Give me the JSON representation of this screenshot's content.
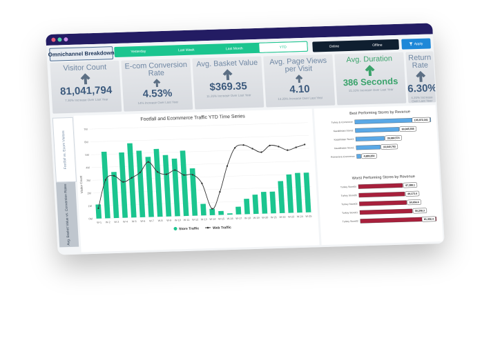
{
  "header": {
    "brand": "Omnichannel Breakdown",
    "time_tabs": [
      "Yesterday",
      "Last Week",
      "Last Month",
      "YTD"
    ],
    "active_time_tab": 3,
    "channel_tabs": [
      "Online",
      "Offline"
    ],
    "apply_label": "Apply",
    "apply_icon": "filter-icon"
  },
  "kpis": [
    {
      "title": "Visitor Count",
      "value": "81,041,794",
      "sub": "7.30% Increase Over Last Year",
      "icon": "arrow-up-icon"
    },
    {
      "title": "E-com Conversion Rate",
      "value": "4.53%",
      "sub": "14% Increase Over Last Year",
      "icon": "arrow-up-icon"
    },
    {
      "title": "Avg. Basket Value",
      "value": "$369.35",
      "sub": "11.20% Increase Over Last Year",
      "icon": "arrow-up-icon"
    },
    {
      "title": "Avg. Page Views per Visit",
      "value": "4.10",
      "sub": "14.20% Increase Over Last Year",
      "icon": "arrow-up-icon"
    },
    {
      "title": "Avg. Duration",
      "value": "386 Seconds",
      "sub": "15.10% Increase Over Last Year",
      "icon": "arrow-up-icon"
    },
    {
      "title": "Return Rate",
      "value": "6.30%",
      "sub": "4.20% Increase Over Last Year",
      "icon": "arrow-up-icon"
    }
  ],
  "side_tabs": [
    "Footfall vs. Ecom Visitors",
    "Avg. Basket Value vs. Conversion Rates"
  ],
  "colors": {
    "titlebar": "#231c63",
    "green": "#1bc58f",
    "kpi_text": "#3c5a7d",
    "kpi_green": "#3aa36b",
    "best_bar": "#5aa8e6",
    "worst_bar": "#a8203c",
    "line": "#333333"
  },
  "chart_data": [
    {
      "type": "bar",
      "title": "Footfall and Ecommerce Traffic YTD Time Series",
      "ylabel": "Visitor Count",
      "ylim": [
        0,
        7000000
      ],
      "ytick_labels": [
        "0M",
        "1M",
        "2M",
        "3M",
        "4M",
        "5M",
        "6M",
        "7M"
      ],
      "categories": [
        "W-1",
        "W-2",
        "W-3",
        "W-4",
        "W-5",
        "W-6",
        "W-7",
        "W-8",
        "W-9",
        "W-10",
        "W-11",
        "W-12",
        "W-13",
        "W-14",
        "W-15",
        "W-16",
        "W-17",
        "W-18",
        "W-19",
        "W-20",
        "W-21",
        "W-22",
        "W-23",
        "W-24",
        "W-25"
      ],
      "series": [
        {
          "name": "Store Traffic",
          "type": "bar",
          "color": "#1bc58f",
          "values": [
            1100000,
            5200000,
            3600000,
            5100000,
            5800000,
            5200000,
            4700000,
            5300000,
            4800000,
            4500000,
            5100000,
            3700000,
            900000,
            500000,
            300000,
            100000,
            600000,
            1200000,
            1500000,
            1700000,
            1700000,
            2500000,
            3000000,
            3100000,
            3100000
          ]
        },
        {
          "name": "Web Traffic",
          "type": "line",
          "color": "#333333",
          "values": [
            800000,
            3000000,
            3300000,
            2800000,
            3100000,
            3500000,
            4300000,
            3500000,
            3300000,
            3600000,
            3200000,
            3200000,
            2500000,
            500000,
            1800000,
            3800000,
            5200000,
            5400000,
            5100000,
            4800000,
            5300000,
            5200000,
            4900000,
            5100000,
            5300000
          ]
        }
      ],
      "legend": "bottom"
    },
    {
      "type": "bar",
      "orientation": "horizontal",
      "title": "Best Performing Stores by Revenue",
      "categories": [
        "Turkey E-Commerce",
        "Kazakhstan Store2",
        "Kazakhstan Store3",
        "Kazakhstan Store1",
        "Romania E-Commerce"
      ],
      "values": [
        105972341,
        60945936,
        39960574,
        33640793,
        4880264
      ],
      "labels": [
        "105,972,341",
        "60,945,936",
        "39,960,574",
        "33,640,793",
        "4,880,264"
      ],
      "color": "#5aa8e6"
    },
    {
      "type": "bar",
      "orientation": "horizontal",
      "title": "Worst Performing Stores by Revenue",
      "categories": [
        "Turkey Store04",
        "Turkey Store05",
        "Turkey Store03",
        "Turkey Store01",
        "Turkey Store02"
      ],
      "values": [
        47388,
        49173,
        50656,
        56208,
        81456
      ],
      "labels": [
        "47,388.1",
        "49,173.4",
        "50,656.6",
        "56,208.3",
        "81,456.4"
      ],
      "color": "#a8203c"
    }
  ]
}
